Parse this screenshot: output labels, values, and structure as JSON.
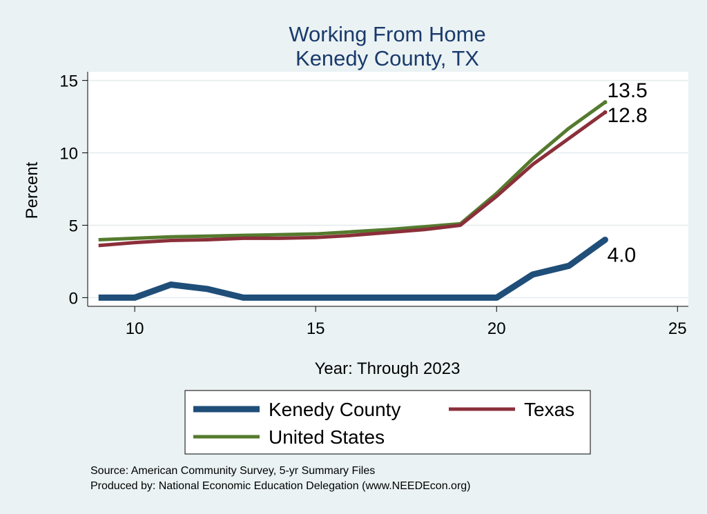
{
  "chart_data": {
    "type": "line",
    "title": [
      "Working From Home",
      "Kenedy County, TX"
    ],
    "xlabel": "Year: Through 2023",
    "ylabel": "Percent",
    "xlim": [
      8.7,
      25.3
    ],
    "ylim": [
      -0.6,
      15.6
    ],
    "xticks": [
      10,
      15,
      20,
      25
    ],
    "yticks": [
      0,
      5,
      10,
      15
    ],
    "grid": true,
    "legend_position": "bottom",
    "series": [
      {
        "name": "Kenedy County",
        "color": "#1f4e79",
        "x": [
          9,
          10,
          11,
          12,
          13,
          14,
          15,
          16,
          17,
          18,
          19,
          20,
          21,
          22,
          23
        ],
        "values": [
          0.0,
          0.0,
          0.9,
          0.6,
          0.0,
          0.0,
          0.0,
          0.0,
          0.0,
          0.0,
          0.0,
          0.0,
          1.6,
          2.2,
          4.0
        ],
        "end_label": "4.0"
      },
      {
        "name": "Texas",
        "color": "#8b2f3a",
        "x": [
          9,
          10,
          11,
          12,
          13,
          14,
          15,
          16,
          17,
          18,
          19,
          20,
          21,
          22,
          23
        ],
        "values": [
          3.6,
          3.8,
          3.95,
          4.0,
          4.1,
          4.1,
          4.15,
          4.3,
          4.5,
          4.7,
          5.0,
          7.0,
          9.2,
          11.0,
          12.8
        ],
        "end_label": "12.8"
      },
      {
        "name": "United States",
        "color": "#557a2e",
        "x": [
          9,
          10,
          11,
          12,
          13,
          14,
          15,
          16,
          17,
          18,
          19,
          20,
          21,
          22,
          23
        ],
        "values": [
          4.0,
          4.1,
          4.2,
          4.25,
          4.3,
          4.35,
          4.4,
          4.55,
          4.7,
          4.9,
          5.1,
          7.2,
          9.6,
          11.7,
          13.5
        ],
        "end_label": "13.5"
      }
    ]
  },
  "source": {
    "line1": "Source: American Community Survey, 5-yr Summary Files",
    "line2": "Produced by: National Economic Education Delegation (www.NEEDEcon.org)"
  }
}
